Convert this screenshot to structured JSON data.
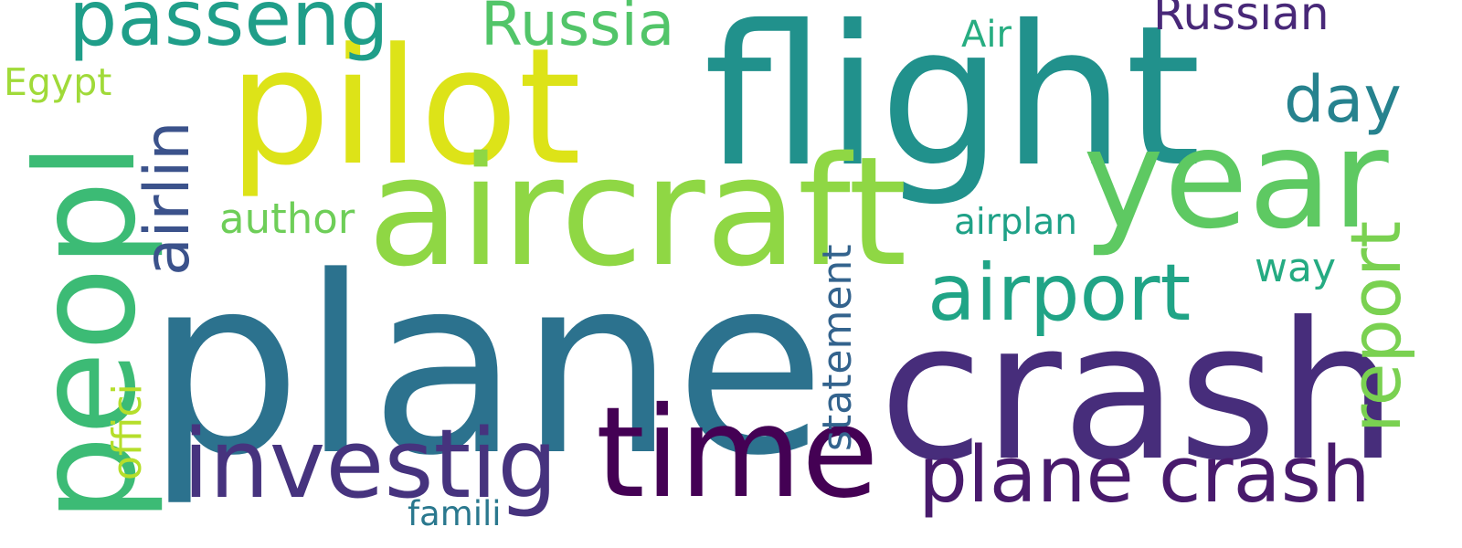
{
  "words": [
    {
      "id": "plane",
      "text": "plane",
      "color": "#2c728e"
    },
    {
      "id": "crash",
      "text": "crash",
      "color": "#472d7b"
    },
    {
      "id": "flight",
      "text": "flight",
      "color": "#21918c"
    },
    {
      "id": "pilot",
      "text": "pilot",
      "color": "#dde318"
    },
    {
      "id": "aircraft",
      "text": "aircraft",
      "color": "#8fd744"
    },
    {
      "id": "peopl",
      "text": "peopl",
      "color": "#3cbb75"
    },
    {
      "id": "year",
      "text": "year",
      "color": "#5ec962"
    },
    {
      "id": "time",
      "text": "time",
      "color": "#440154"
    },
    {
      "id": "investig",
      "text": "investig",
      "color": "#46337e"
    },
    {
      "id": "planecrash",
      "text": "plane crash",
      "color": "#481a6c"
    },
    {
      "id": "airport",
      "text": "airport",
      "color": "#20a486"
    },
    {
      "id": "passeng",
      "text": "passeng",
      "color": "#1f9e89"
    },
    {
      "id": "report",
      "text": "report",
      "color": "#7ad151"
    },
    {
      "id": "day",
      "text": "day",
      "color": "#26828e"
    },
    {
      "id": "airlin",
      "text": "airlin",
      "color": "#3b528b"
    },
    {
      "id": "russia",
      "text": "Russia",
      "color": "#52c569"
    },
    {
      "id": "russian",
      "text": "Russian",
      "color": "#482878"
    },
    {
      "id": "author",
      "text": "author",
      "color": "#6ece58"
    },
    {
      "id": "statement",
      "text": "statement",
      "color": "#33638d"
    },
    {
      "id": "way",
      "text": "way",
      "color": "#25ab82"
    },
    {
      "id": "offici",
      "text": "offici",
      "color": "#b5de2b"
    },
    {
      "id": "egypt",
      "text": "Egypt",
      "color": "#a0da39"
    },
    {
      "id": "airplan",
      "text": "airplan",
      "color": "#1fa187"
    },
    {
      "id": "air",
      "text": "Air",
      "color": "#27ad81"
    },
    {
      "id": "famili",
      "text": "famili",
      "color": "#2a788e"
    }
  ]
}
